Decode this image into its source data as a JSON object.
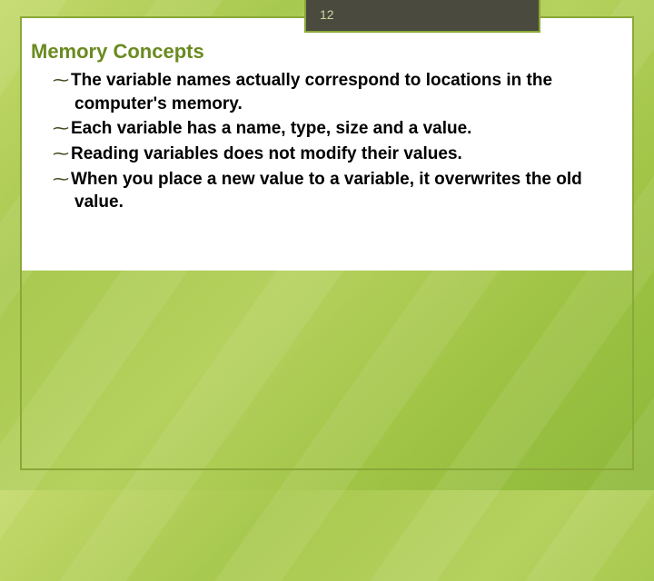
{
  "page_number": "12",
  "title": "Memory Concepts",
  "bullets": [
    "The variable names actually correspond to locations in the computer's memory.",
    "Each variable has a name, type, size and a value.",
    "Reading variables does not modify their values.",
    "When you place a new value to a variable, it overwrites the old value."
  ],
  "colors": {
    "title": "#6a8a1f",
    "border": "#8aa838",
    "tab_bg": "#4a4a3e",
    "page_num": "#cbd8a0",
    "body_text": "#000000",
    "bg_light": "#c4d96b",
    "bg_dark": "#8db83a"
  },
  "bullet_glyph": "~"
}
